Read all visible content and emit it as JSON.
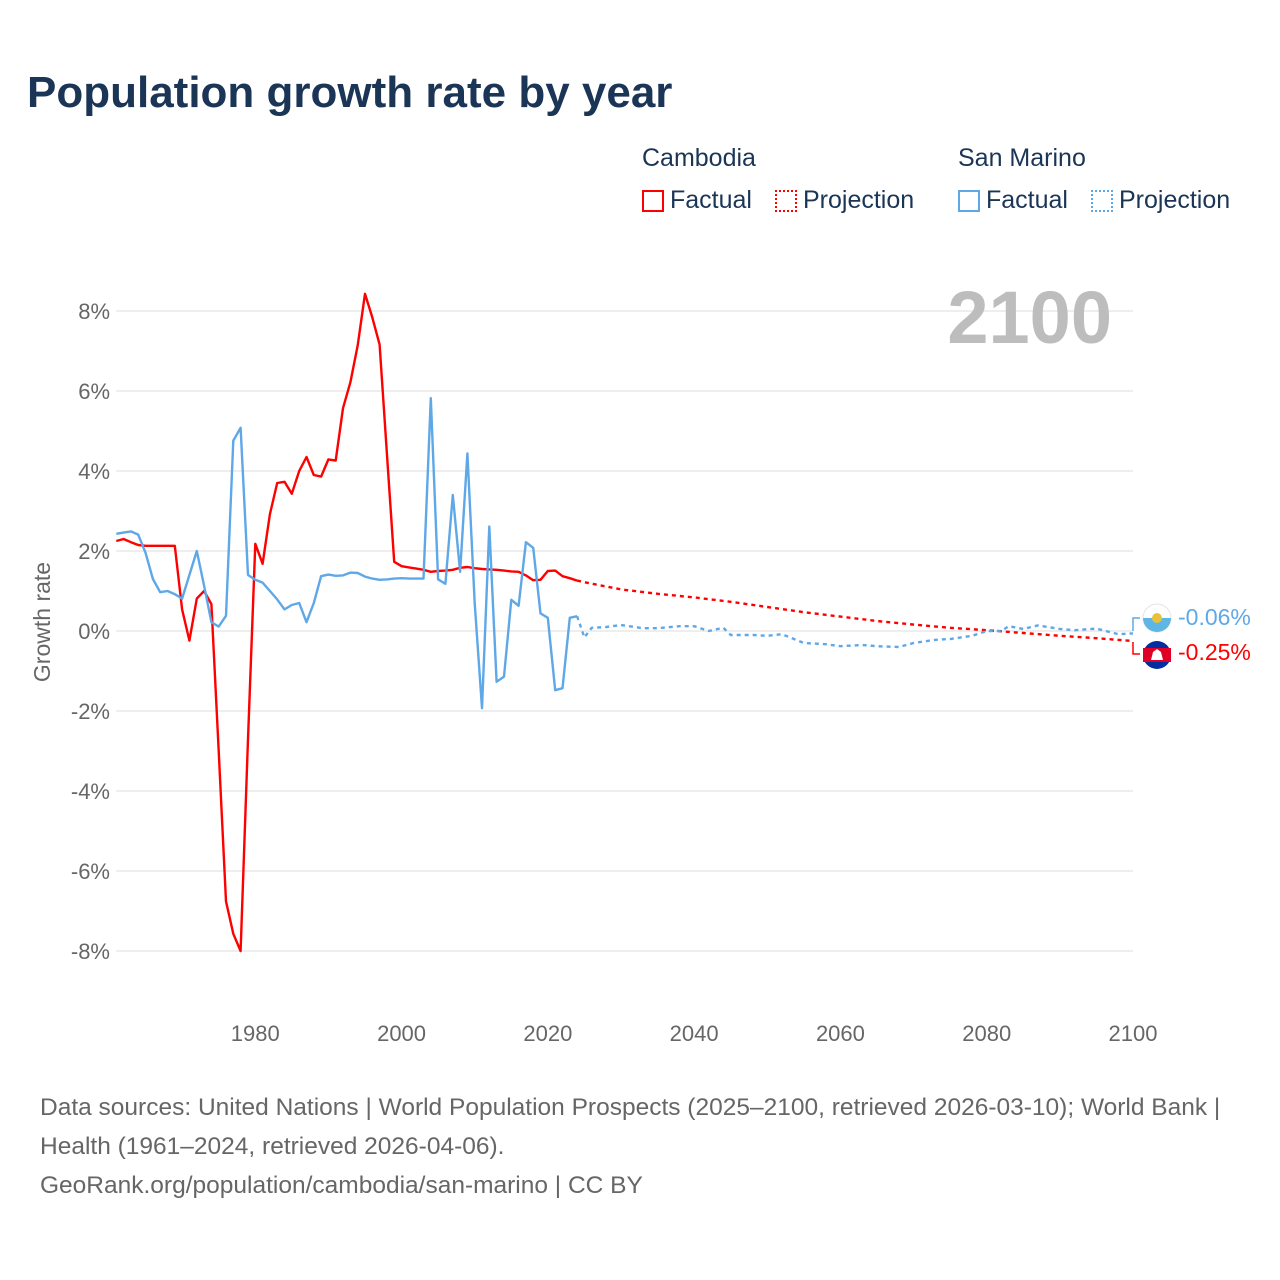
{
  "title": "Population growth rate by year",
  "legend": {
    "groups": [
      {
        "name": "Cambodia",
        "color": "#ff0000",
        "factual": "Factual",
        "projection": "Projection"
      },
      {
        "name": "San Marino",
        "color": "#5fa8e8",
        "factual": "Factual",
        "projection": "Projection"
      }
    ]
  },
  "year_watermark": "2100",
  "end_labels": {
    "san_marino": "-0.06%",
    "cambodia": "-0.25%"
  },
  "footer": {
    "sources": "Data sources: United Nations | World Population Prospects (2025–2100, retrieved 2026-03-10); World Bank | Health (1961–2024, retrieved 2026-04-06).",
    "credit": "GeoRank.org/population/cambodia/san-marino | CC BY"
  },
  "chart_data": {
    "type": "line",
    "title": "Population growth rate by year",
    "xlabel": "",
    "ylabel": "Growth rate",
    "xlim": [
      1961,
      2100
    ],
    "ylim": [
      -9,
      8.8
    ],
    "x_ticks": [
      1980,
      2000,
      2020,
      2040,
      2060,
      2080,
      2100
    ],
    "y_ticks": [
      8,
      6,
      4,
      2,
      0,
      -2,
      -4,
      -6,
      -8
    ],
    "y_tick_labels": [
      "8%",
      "6%",
      "4%",
      "2%",
      "0%",
      "-2%",
      "-4%",
      "-6%",
      "-8%"
    ],
    "grid": true,
    "legend_placement": "top-right",
    "series": [
      {
        "name": "Cambodia Factual",
        "color": "#ff0000",
        "style": "solid",
        "x": [
          1961,
          1962,
          1963,
          1964,
          1965,
          1966,
          1967,
          1968,
          1969,
          1970,
          1971,
          1972,
          1973,
          1974,
          1975,
          1976,
          1977,
          1978,
          1979,
          1980,
          1981,
          1982,
          1983,
          1984,
          1985,
          1986,
          1987,
          1988,
          1989,
          1990,
          1991,
          1992,
          1993,
          1994,
          1995,
          1996,
          1997,
          1998,
          1999,
          2000,
          2001,
          2002,
          2003,
          2004,
          2005,
          2006,
          2007,
          2008,
          2009,
          2010,
          2011,
          2012,
          2013,
          2014,
          2015,
          2016,
          2017,
          2018,
          2019,
          2020,
          2021,
          2022,
          2023,
          2024
        ],
        "values": [
          2.25,
          2.3,
          2.22,
          2.15,
          2.13,
          2.13,
          2.13,
          2.13,
          2.13,
          0.54,
          -0.24,
          0.81,
          1.0,
          0.67,
          -3.0,
          -6.76,
          -7.57,
          -8.0,
          -2.7,
          2.18,
          1.68,
          2.92,
          3.7,
          3.73,
          3.43,
          4.0,
          4.35,
          3.9,
          3.86,
          4.29,
          4.26,
          5.57,
          6.22,
          7.14,
          8.43,
          7.84,
          7.16,
          4.44,
          1.73,
          1.62,
          1.59,
          1.56,
          1.53,
          1.48,
          1.5,
          1.51,
          1.53,
          1.58,
          1.6,
          1.57,
          1.55,
          1.54,
          1.53,
          1.51,
          1.49,
          1.48,
          1.39,
          1.27,
          1.28,
          1.5,
          1.51,
          1.37,
          1.32,
          1.26
        ]
      },
      {
        "name": "Cambodia Projection",
        "color": "#ff0000",
        "style": "dotted",
        "x": [
          2024,
          2025,
          2030,
          2035,
          2040,
          2045,
          2050,
          2055,
          2060,
          2065,
          2070,
          2075,
          2080,
          2085,
          2090,
          2095,
          2100
        ],
        "values": [
          1.26,
          1.22,
          1.04,
          0.93,
          0.84,
          0.73,
          0.6,
          0.47,
          0.36,
          0.25,
          0.16,
          0.08,
          0.02,
          -0.05,
          -0.12,
          -0.18,
          -0.25
        ]
      },
      {
        "name": "San Marino Factual",
        "color": "#5fa8e8",
        "style": "solid",
        "x": [
          1961,
          1962,
          1963,
          1964,
          1965,
          1966,
          1967,
          1968,
          1969,
          1970,
          1971,
          1972,
          1973,
          1974,
          1975,
          1976,
          1977,
          1978,
          1979,
          1980,
          1981,
          1982,
          1983,
          1984,
          1985,
          1986,
          1987,
          1988,
          1989,
          1990,
          1991,
          1992,
          1993,
          1994,
          1995,
          1996,
          1997,
          1998,
          1999,
          2000,
          2001,
          2002,
          2003,
          2004,
          2005,
          2006,
          2007,
          2008,
          2009,
          2010,
          2011,
          2012,
          2013,
          2014,
          2015,
          2016,
          2017,
          2018,
          2019,
          2020,
          2021,
          2022,
          2023,
          2024
        ],
        "values": [
          2.43,
          2.46,
          2.49,
          2.41,
          1.95,
          1.3,
          0.97,
          1.0,
          0.92,
          0.81,
          1.4,
          2.0,
          1.13,
          0.22,
          0.11,
          0.38,
          4.76,
          5.08,
          1.4,
          1.28,
          1.21,
          1.0,
          0.79,
          0.54,
          0.65,
          0.7,
          0.22,
          0.7,
          1.37,
          1.41,
          1.38,
          1.39,
          1.46,
          1.45,
          1.36,
          1.31,
          1.28,
          1.29,
          1.31,
          1.32,
          1.31,
          1.31,
          1.31,
          5.82,
          1.29,
          1.18,
          3.4,
          1.48,
          4.44,
          0.7,
          -1.93,
          2.61,
          -1.27,
          -1.14,
          0.78,
          0.63,
          2.22,
          2.08,
          0.44,
          0.33,
          -1.48,
          -1.43,
          0.33,
          0.37
        ]
      },
      {
        "name": "San Marino Projection",
        "color": "#5fa8e8",
        "style": "dotted",
        "x": [
          2024,
          2025,
          2026,
          2028,
          2030,
          2033,
          2035,
          2038,
          2040,
          2042,
          2044,
          2045,
          2048,
          2050,
          2052,
          2055,
          2058,
          2060,
          2063,
          2065,
          2068,
          2070,
          2073,
          2075,
          2078,
          2080,
          2082,
          2083,
          2085,
          2087,
          2090,
          2092,
          2095,
          2098,
          2100
        ],
        "values": [
          0.37,
          -0.16,
          0.08,
          0.1,
          0.15,
          0.07,
          0.07,
          0.12,
          0.12,
          0.0,
          0.08,
          -0.1,
          -0.1,
          -0.12,
          -0.08,
          -0.3,
          -0.33,
          -0.38,
          -0.35,
          -0.38,
          -0.4,
          -0.3,
          -0.22,
          -0.2,
          -0.12,
          0.0,
          0.0,
          0.12,
          0.05,
          0.14,
          0.05,
          0.02,
          0.06,
          -0.08,
          -0.06
        ]
      }
    ]
  }
}
